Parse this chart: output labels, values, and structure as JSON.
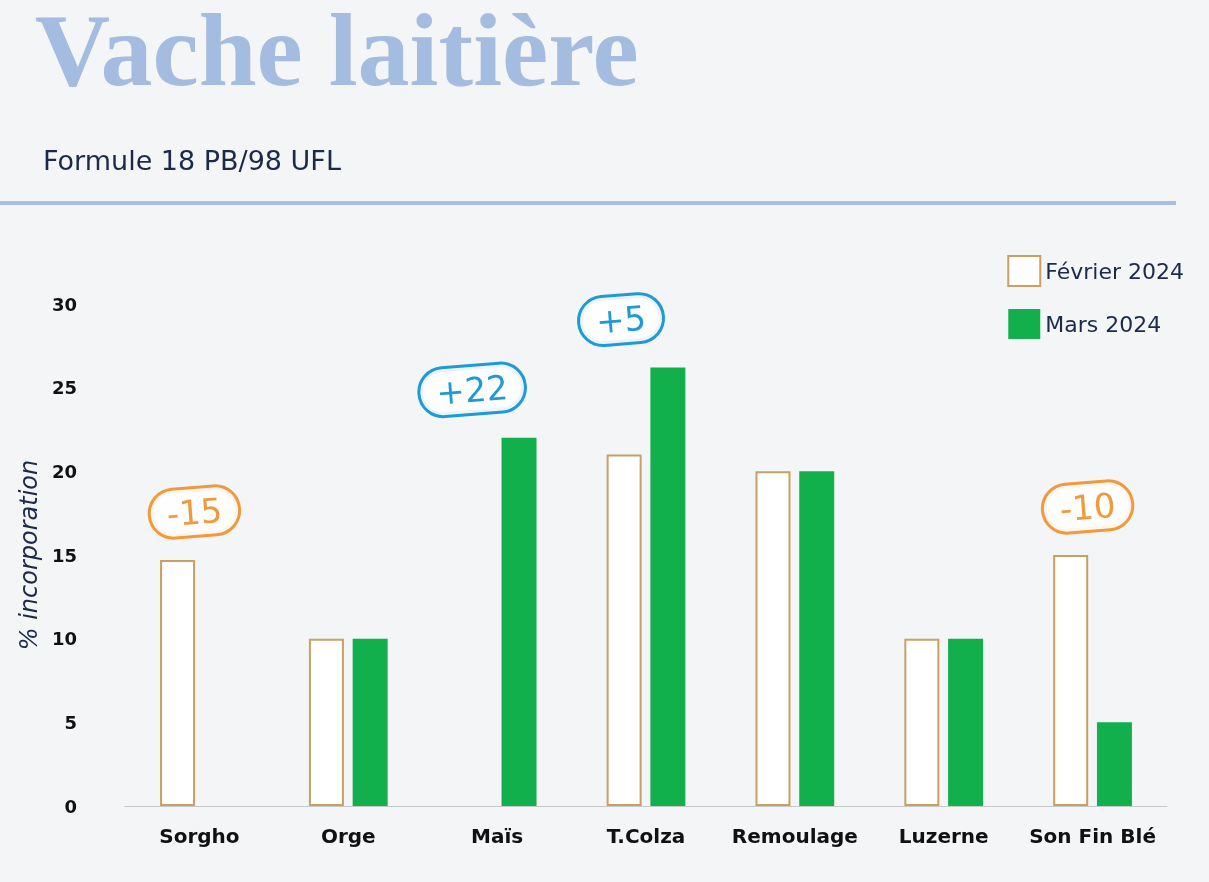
{
  "chart_data": {
    "type": "bar",
    "title": "Vache laitière",
    "subtitle": "Formule 18 PB/98 UFL",
    "ylabel": "% incorporation",
    "categories": [
      "Sorgho",
      "Orge",
      "Maïs",
      "T.Colza",
      "Remoulage",
      "Luzerne",
      "Son Fin Blé"
    ],
    "series": [
      {
        "name": "Février 2024",
        "color": "#c8a062",
        "values": [
          14.7,
          10,
          null,
          21,
          20,
          10,
          15
        ]
      },
      {
        "name": "Mars 2024",
        "color": "#12b04c",
        "values": [
          null,
          10,
          22,
          26.2,
          20,
          10,
          5
        ]
      }
    ],
    "ylim": [
      0,
      30
    ],
    "yticks": [
      0,
      5,
      10,
      15,
      20,
      25,
      30
    ],
    "grid": false,
    "legend": "top right",
    "annotations": [
      "-15",
      "+22",
      "+5",
      "-10"
    ]
  }
}
